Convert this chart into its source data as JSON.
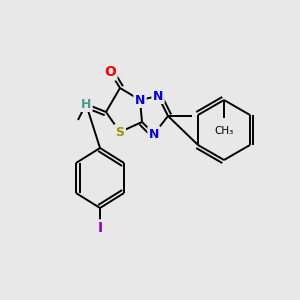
{
  "bg_color": "#e8e8e8",
  "bond_color": "#000000",
  "atom_colors": {
    "O": "#ff0000",
    "N": "#0000ee",
    "S": "#999900",
    "H": "#4a9a8a",
    "I": "#9400d3",
    "C": "#000000"
  },
  "figsize": [
    3.0,
    3.0
  ],
  "dpi": 100
}
